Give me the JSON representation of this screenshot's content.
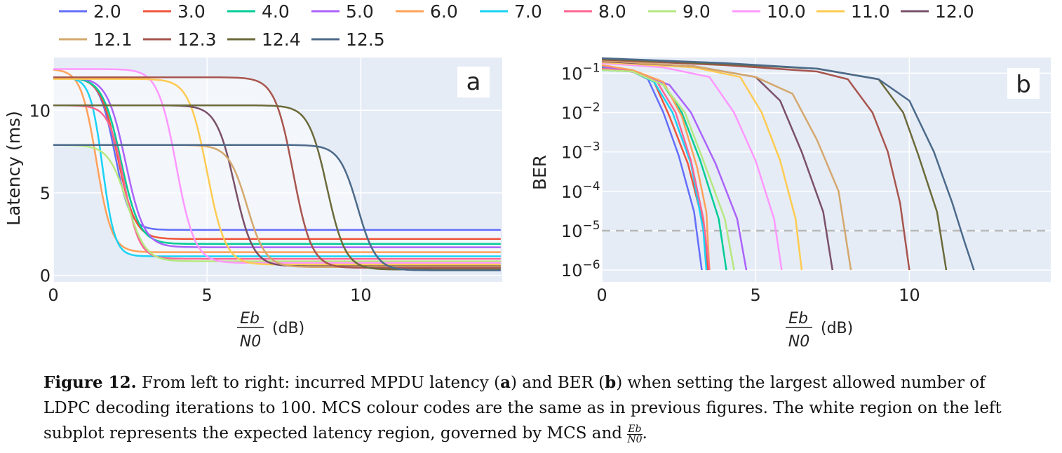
{
  "figure": {
    "caption_label": "Figure 12.",
    "caption_part1": "From left to right: incurred MPDU latency (",
    "caption_a": "a",
    "caption_part2": ") and BER (",
    "caption_b": "b",
    "caption_part3": ") when setting the largest allowed number of LDPC decoding iterations to 100. MCS colour codes are the same as in previous figures. The white region on the left subplot represents the expected latency region, governed by MCS and ",
    "caption_frac_num": "Eb",
    "caption_frac_den": "N0",
    "caption_end": "."
  },
  "legend": [
    {
      "name": "2.0",
      "color": "#636efa"
    },
    {
      "name": "3.0",
      "color": "#EF553B"
    },
    {
      "name": "4.0",
      "color": "#00cc96"
    },
    {
      "name": "5.0",
      "color": "#ab63fa"
    },
    {
      "name": "6.0",
      "color": "#FFA15A"
    },
    {
      "name": "7.0",
      "color": "#19d3f3"
    },
    {
      "name": "8.0",
      "color": "#FF6692"
    },
    {
      "name": "9.0",
      "color": "#B6E880"
    },
    {
      "name": "10.0",
      "color": "#FF97FF"
    },
    {
      "name": "11.0",
      "color": "#FECB52"
    },
    {
      "name": "12.0",
      "color": "#7a5068"
    },
    {
      "name": "12.1",
      "color": "#d4a86e"
    },
    {
      "name": "12.3",
      "color": "#a8554e"
    },
    {
      "name": "12.4",
      "color": "#6b6a3a"
    },
    {
      "name": "12.5",
      "color": "#4c6a8a"
    }
  ],
  "chart_data": [
    {
      "type": "line",
      "panel_label": "a",
      "xlabel_num": "Eb",
      "xlabel_den": "N0",
      "xlabel_unit": "(dB)",
      "ylabel": "Latency (ms)",
      "xlim": [
        0,
        14.6
      ],
      "ylim": [
        -0.4,
        13.2
      ],
      "xticks": [
        0,
        5,
        10
      ],
      "yticks": [
        0,
        5,
        10
      ],
      "grid": true,
      "series": [
        {
          "name": "2.0",
          "start": 12.0,
          "end": 2.75,
          "mid": 2.0,
          "width": 0.25
        },
        {
          "name": "3.0",
          "start": 12.0,
          "end": 2.2,
          "mid": 2.1,
          "width": 0.28
        },
        {
          "name": "4.0",
          "start": 12.0,
          "end": 1.9,
          "mid": 2.2,
          "width": 0.3
        },
        {
          "name": "5.0",
          "start": 12.0,
          "end": 1.7,
          "mid": 2.35,
          "width": 0.3
        },
        {
          "name": "6.0",
          "start": 12.5,
          "end": 1.4,
          "mid": 1.4,
          "width": 0.25
        },
        {
          "name": "7.0",
          "start": 12.0,
          "end": 1.15,
          "mid": 1.6,
          "width": 0.2
        },
        {
          "name": "8.0",
          "start": 10.3,
          "end": 1.0,
          "mid": 2.3,
          "width": 0.25
        },
        {
          "name": "9.0",
          "start": 7.9,
          "end": 0.85,
          "mid": 2.4,
          "width": 0.3
        },
        {
          "name": "10.0",
          "start": 12.5,
          "end": 0.75,
          "mid": 4.0,
          "width": 0.3
        },
        {
          "name": "11.0",
          "start": 11.9,
          "end": 0.65,
          "mid": 5.0,
          "width": 0.3
        },
        {
          "name": "12.0",
          "start": 10.3,
          "end": 0.55,
          "mid": 5.9,
          "width": 0.3
        },
        {
          "name": "12.1",
          "start": 7.9,
          "end": 0.5,
          "mid": 6.3,
          "width": 0.3
        },
        {
          "name": "12.3",
          "start": 12.0,
          "end": 0.45,
          "mid": 7.8,
          "width": 0.3
        },
        {
          "name": "12.4",
          "start": 10.3,
          "end": 0.35,
          "mid": 8.9,
          "width": 0.3
        },
        {
          "name": "12.5",
          "start": 7.9,
          "end": 0.3,
          "mid": 9.9,
          "width": 0.3
        }
      ]
    },
    {
      "type": "line",
      "panel_label": "b",
      "xlabel_num": "Eb",
      "xlabel_den": "N0",
      "xlabel_unit": "(dB)",
      "ylabel": "BER",
      "yscale": "log",
      "xlim": [
        0,
        14.6
      ],
      "ylim": [
        5e-07,
        0.25
      ],
      "xticks": [
        0,
        5,
        10
      ],
      "yticks": [
        {
          "value": 0.1,
          "base": "10",
          "exp": "−1"
        },
        {
          "value": 0.01,
          "base": "10",
          "exp": "−2"
        },
        {
          "value": 0.001,
          "base": "10",
          "exp": "−3"
        },
        {
          "value": 0.0001,
          "base": "10",
          "exp": "−4"
        },
        {
          "value": 1e-05,
          "base": "10",
          "exp": "−5"
        },
        {
          "value": 1e-06,
          "base": "10",
          "exp": "−6"
        }
      ],
      "reference_line": 1e-05,
      "grid": true,
      "series": [
        {
          "name": "2.0",
          "points": [
            [
              0,
              0.12
            ],
            [
              1,
              0.11
            ],
            [
              1.5,
              0.07
            ],
            [
              2,
              0.01
            ],
            [
              2.5,
              0.0008
            ],
            [
              3,
              3e-05
            ],
            [
              3.25,
              1e-06
            ]
          ]
        },
        {
          "name": "3.0",
          "points": [
            [
              0,
              0.13
            ],
            [
              1,
              0.11
            ],
            [
              1.7,
              0.06
            ],
            [
              2.2,
              0.008
            ],
            [
              2.8,
              0.0005
            ],
            [
              3.3,
              1.5e-05
            ],
            [
              3.45,
              1e-06
            ]
          ]
        },
        {
          "name": "4.0",
          "points": [
            [
              0,
              0.14
            ],
            [
              1,
              0.11
            ],
            [
              2,
              0.05
            ],
            [
              2.6,
              0.01
            ],
            [
              3.2,
              0.0006
            ],
            [
              3.8,
              2e-05
            ],
            [
              4.05,
              1e-06
            ]
          ]
        },
        {
          "name": "5.0",
          "points": [
            [
              0,
              0.15
            ],
            [
              1.2,
              0.1
            ],
            [
              2.2,
              0.05
            ],
            [
              2.9,
              0.01
            ],
            [
              3.7,
              0.0005
            ],
            [
              4.4,
              2e-05
            ],
            [
              4.7,
              1e-06
            ]
          ]
        },
        {
          "name": "6.0",
          "points": [
            [
              0,
              0.16
            ],
            [
              1,
              0.12
            ],
            [
              2,
              0.06
            ],
            [
              2.6,
              0.008
            ],
            [
              3.1,
              0.0004
            ],
            [
              3.4,
              3e-05
            ],
            [
              3.5,
              1e-06
            ]
          ]
        },
        {
          "name": "7.0",
          "points": [
            [
              0,
              0.12
            ],
            [
              1,
              0.11
            ],
            [
              1.7,
              0.06
            ],
            [
              2.3,
              0.01
            ],
            [
              2.9,
              0.0005
            ],
            [
              3.3,
              1e-05
            ],
            [
              3.4,
              1e-06
            ]
          ]
        },
        {
          "name": "8.0",
          "points": [
            [
              0,
              0.13
            ],
            [
              1,
              0.11
            ],
            [
              1.8,
              0.06
            ],
            [
              2.4,
              0.01
            ],
            [
              2.9,
              0.0006
            ],
            [
              3.3,
              2e-05
            ],
            [
              3.5,
              1e-06
            ]
          ]
        },
        {
          "name": "9.0",
          "points": [
            [
              0,
              0.12
            ],
            [
              1,
              0.11
            ],
            [
              2,
              0.05
            ],
            [
              2.7,
              0.01
            ],
            [
              3.3,
              0.0006
            ],
            [
              4,
              2e-05
            ],
            [
              4.3,
              1e-06
            ]
          ]
        },
        {
          "name": "10.0",
          "points": [
            [
              0,
              0.18
            ],
            [
              2,
              0.14
            ],
            [
              3.5,
              0.08
            ],
            [
              4.3,
              0.01
            ],
            [
              5,
              0.0006
            ],
            [
              5.6,
              2e-05
            ],
            [
              5.85,
              1e-06
            ]
          ]
        },
        {
          "name": "11.0",
          "points": [
            [
              0,
              0.19
            ],
            [
              3,
              0.14
            ],
            [
              4.5,
              0.08
            ],
            [
              5.2,
              0.01
            ],
            [
              5.8,
              0.0006
            ],
            [
              6.3,
              2e-05
            ],
            [
              6.5,
              1e-06
            ]
          ]
        },
        {
          "name": "12.0",
          "points": [
            [
              0,
              0.2
            ],
            [
              3,
              0.15
            ],
            [
              5,
              0.08
            ],
            [
              5.8,
              0.02
            ],
            [
              6.5,
              0.001
            ],
            [
              7.2,
              3e-05
            ],
            [
              7.5,
              1e-06
            ]
          ]
        },
        {
          "name": "12.1",
          "points": [
            [
              0,
              0.21
            ],
            [
              3,
              0.15
            ],
            [
              5,
              0.08
            ],
            [
              6.2,
              0.03
            ],
            [
              7,
              0.002
            ],
            [
              7.7,
              0.0001
            ],
            [
              8.1,
              1e-06
            ]
          ]
        },
        {
          "name": "12.3",
          "points": [
            [
              0,
              0.22
            ],
            [
              4,
              0.16
            ],
            [
              7,
              0.11
            ],
            [
              8,
              0.07
            ],
            [
              8.8,
              0.01
            ],
            [
              9.3,
              0.001
            ],
            [
              9.7,
              5e-05
            ],
            [
              10,
              1e-06
            ]
          ]
        },
        {
          "name": "12.4",
          "points": [
            [
              0,
              0.23
            ],
            [
              4,
              0.17
            ],
            [
              7,
              0.13
            ],
            [
              9,
              0.07
            ],
            [
              9.8,
              0.01
            ],
            [
              10.3,
              0.0008
            ],
            [
              10.9,
              3e-05
            ],
            [
              11.2,
              1e-06
            ]
          ]
        },
        {
          "name": "12.5",
          "points": [
            [
              0,
              0.24
            ],
            [
              4,
              0.18
            ],
            [
              7,
              0.13
            ],
            [
              9,
              0.07
            ],
            [
              10,
              0.02
            ],
            [
              10.8,
              0.001
            ],
            [
              11.4,
              5e-05
            ],
            [
              11.8,
              5e-06
            ],
            [
              12.1,
              1e-06
            ]
          ]
        }
      ]
    }
  ]
}
